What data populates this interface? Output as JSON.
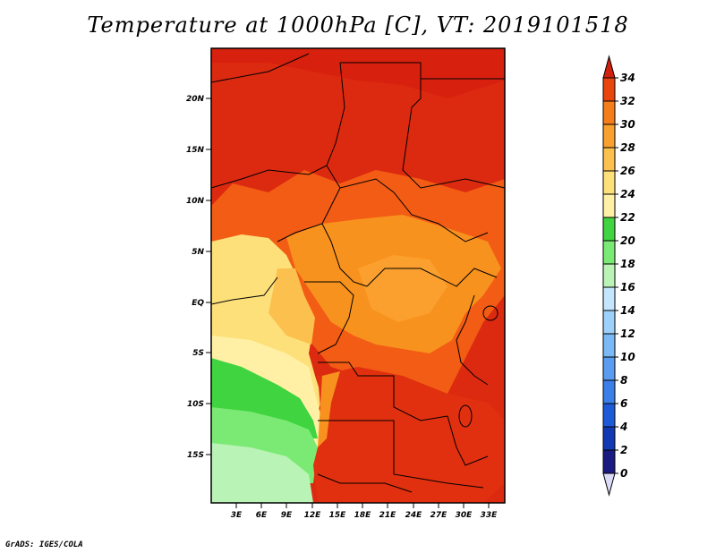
{
  "title": "Temperature at 1000hPa [C], VT: 2019101518",
  "credit": "GrADS: IGES/COLA",
  "map": {
    "lat_labels": [
      "20N",
      "15N",
      "10N",
      "5N",
      "EQ",
      "5S",
      "10S",
      "15S"
    ],
    "lon_labels": [
      "3E",
      "6E",
      "9E",
      "12E",
      "15E",
      "18E",
      "21E",
      "24E",
      "27E",
      "30E",
      "33E"
    ]
  },
  "colorbar": {
    "levels": [
      "0",
      "2",
      "4",
      "6",
      "8",
      "10",
      "12",
      "14",
      "16",
      "18",
      "20",
      "22",
      "24",
      "26",
      "28",
      "30",
      "32",
      "34"
    ],
    "colors": [
      "#1a1a80",
      "#1238b4",
      "#1d5ad8",
      "#3a7ee8",
      "#5a9df0",
      "#7ab9f5",
      "#9ed1fa",
      "#c4e6fc",
      "#baf3b6",
      "#7bea74",
      "#40d440",
      "#fff0a6",
      "#fee07a",
      "#fcc04e",
      "#f9a02e",
      "#f67e1a",
      "#e8450f",
      "#d0200e"
    ],
    "low_color": "#dcdcf8",
    "high_color": "#d0200e"
  }
}
